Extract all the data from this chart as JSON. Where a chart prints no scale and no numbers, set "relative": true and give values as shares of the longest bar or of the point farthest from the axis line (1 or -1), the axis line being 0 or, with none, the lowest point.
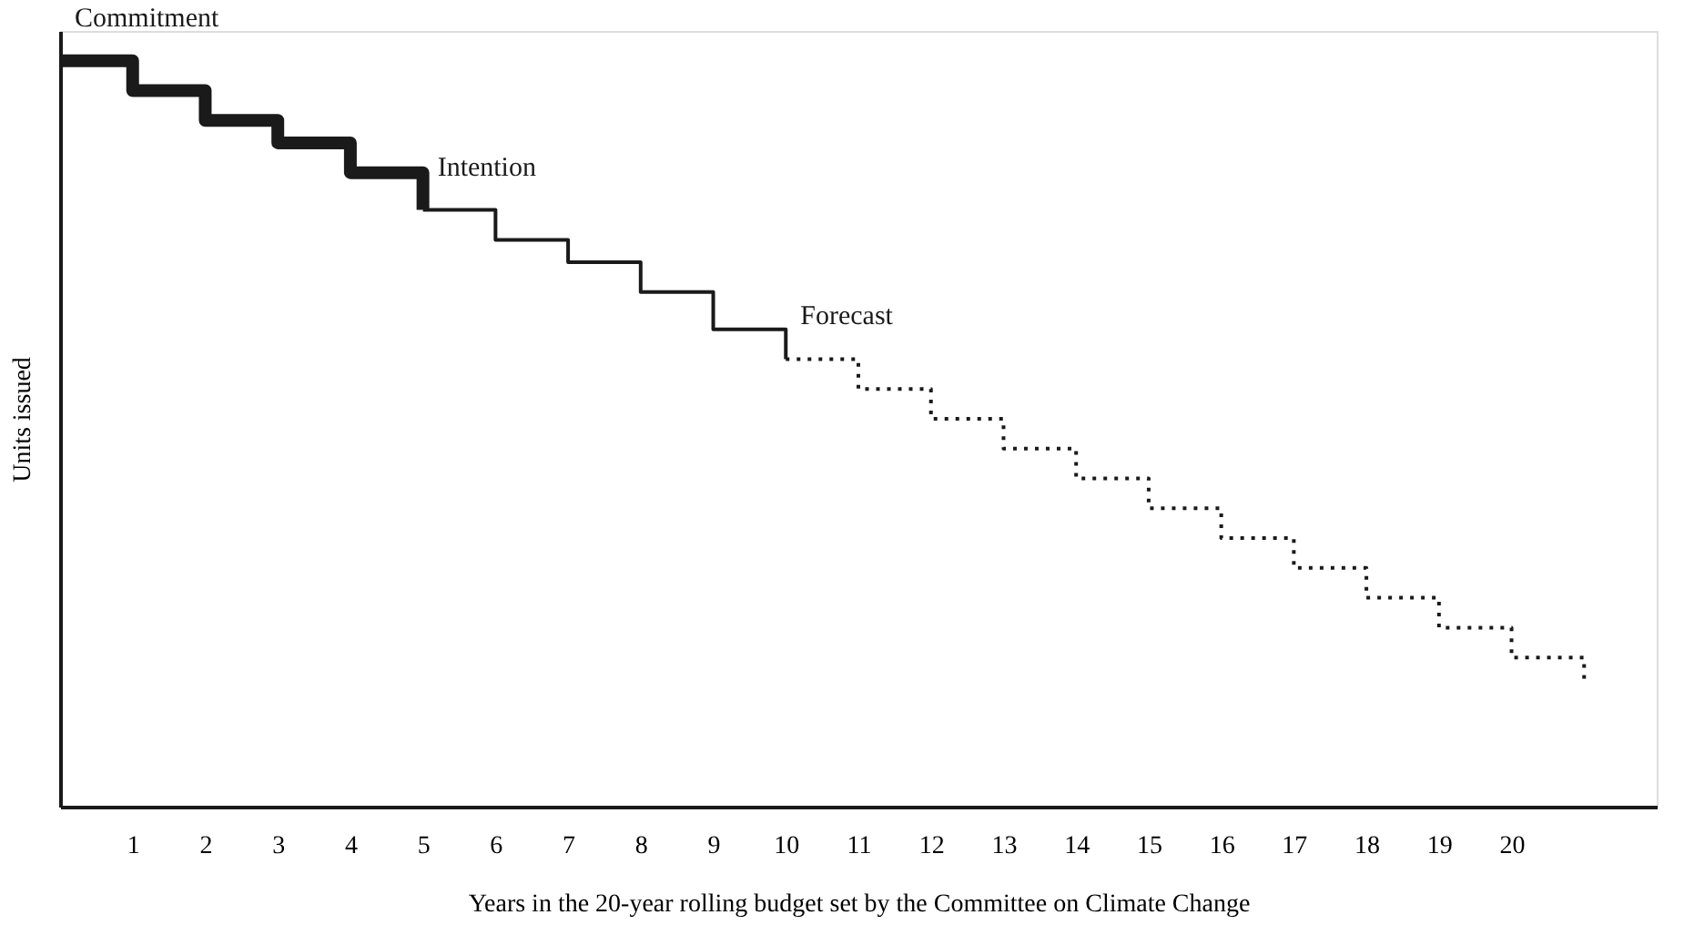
{
  "chart_data": {
    "type": "step",
    "relative": true,
    "xlabel": "Years in the 20-year rolling budget set by the Committee on Climate Change",
    "ylabel": "Units issued",
    "xlim": [
      0,
      22
    ],
    "xticks": [
      1,
      2,
      3,
      4,
      5,
      6,
      7,
      8,
      9,
      10,
      11,
      12,
      13,
      14,
      15,
      16,
      17,
      18,
      19,
      20
    ],
    "grid": false,
    "series": [
      {
        "name": "Commitment",
        "color": "#1a1a1a",
        "line_style": "solid",
        "x": [
          0,
          1,
          2,
          3,
          4,
          5
        ],
        "values": [
          1.0,
          0.96,
          0.92,
          0.89,
          0.85,
          0.8
        ]
      },
      {
        "name": "Intention",
        "color": "#1a1a1a",
        "line_style": "solid",
        "x": [
          5,
          6,
          7,
          8,
          9,
          10
        ],
        "values": [
          0.8,
          0.76,
          0.73,
          0.69,
          0.64,
          0.6
        ]
      },
      {
        "name": "Forecast",
        "color": "#1a1a1a",
        "line_style": "dotted",
        "x": [
          10,
          11,
          12,
          13,
          14,
          15,
          16,
          17,
          18,
          19,
          20,
          21
        ],
        "values": [
          0.6,
          0.56,
          0.52,
          0.48,
          0.44,
          0.4,
          0.36,
          0.32,
          0.28,
          0.24,
          0.2,
          0.17
        ]
      }
    ]
  }
}
